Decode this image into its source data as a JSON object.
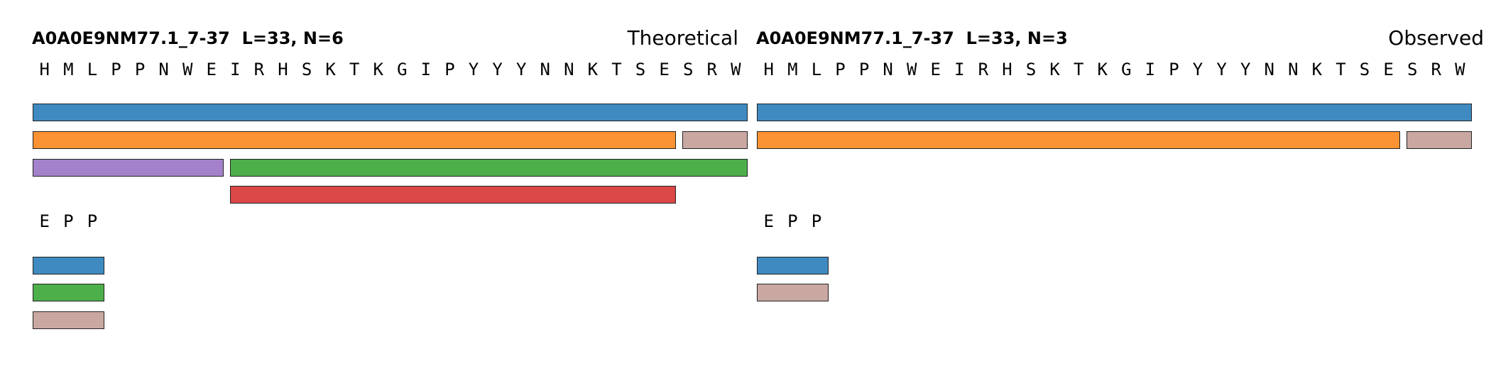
{
  "colors": {
    "blue": "#3f8bc1",
    "orange": "#fb9233",
    "pink": "#caa8a2",
    "purple": "#a482cb",
    "green": "#4daf4a",
    "red": "#dc4747"
  },
  "panels": [
    {
      "title": "A0A0E9NM77.1_7-37  L=33, N=6",
      "label": "Theoretical",
      "sequence": "HMLPPNWEIRHSKTKGIPYYYNNKTSESRW",
      "tail_sequence": "EPP",
      "main_peptides": [
        {
          "start": 1,
          "end": 30,
          "color": "blue"
        },
        {
          "start": 1,
          "end": 27,
          "color": "orange"
        },
        {
          "start": 28,
          "end": 30,
          "color": "pink"
        },
        {
          "start": 1,
          "end": 8,
          "color": "purple"
        },
        {
          "start": 9,
          "end": 30,
          "color": "green"
        },
        {
          "start": 9,
          "end": 27,
          "color": "red"
        }
      ],
      "tail_peptides": [
        {
          "start": 1,
          "end": 3,
          "color": "blue"
        },
        {
          "start": 1,
          "end": 3,
          "color": "green"
        },
        {
          "start": 1,
          "end": 3,
          "color": "pink"
        }
      ]
    },
    {
      "title": "A0A0E9NM77.1_7-37  L=33, N=3",
      "label": "Observed",
      "sequence": "HMLPPNWEIRHSKTKGIPYYYNNKTSESRW",
      "tail_sequence": "EPP",
      "main_peptides": [
        {
          "start": 1,
          "end": 30,
          "color": "blue"
        },
        {
          "start": 1,
          "end": 27,
          "color": "orange"
        },
        {
          "start": 28,
          "end": 30,
          "color": "pink"
        }
      ],
      "tail_peptides": [
        {
          "start": 1,
          "end": 3,
          "color": "blue"
        },
        {
          "start": 1,
          "end": 3,
          "color": "pink"
        }
      ]
    }
  ]
}
